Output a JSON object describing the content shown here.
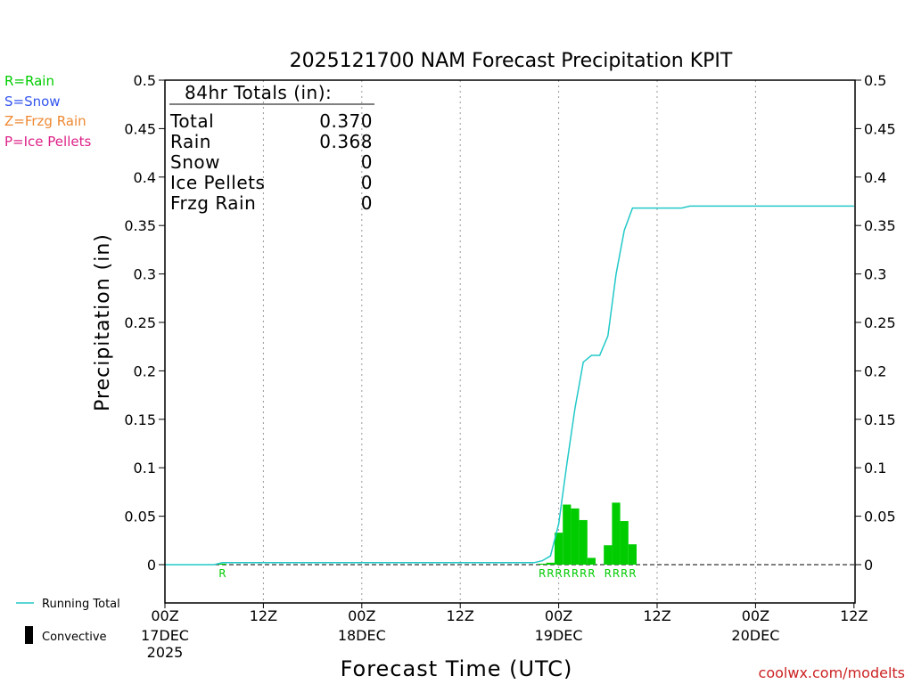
{
  "chart_data": {
    "type": "bar+line",
    "title": "2025121700 NAM Forecast Precipitation KPIT",
    "xlabel": "Forecast Time (UTC)",
    "ylabel": "Precipitation (in)",
    "ylim": [
      -0.04,
      0.5
    ],
    "y_ticks": [
      "0",
      "0.05",
      "0.1",
      "0.15",
      "0.2",
      "0.25",
      "0.3",
      "0.35",
      "0.4",
      "0.45",
      "0.5"
    ],
    "xlim_hours": [
      0,
      84
    ],
    "x_ticks": [
      {
        "hour": 0,
        "time": "00Z",
        "date": "17DEC",
        "year": "2025"
      },
      {
        "hour": 12,
        "time": "12Z",
        "date": "",
        "year": ""
      },
      {
        "hour": 24,
        "time": "00Z",
        "date": "18DEC",
        "year": ""
      },
      {
        "hour": 36,
        "time": "12Z",
        "date": "",
        "year": ""
      },
      {
        "hour": 48,
        "time": "00Z",
        "date": "19DEC",
        "year": ""
      },
      {
        "hour": 60,
        "time": "12Z",
        "date": "",
        "year": ""
      },
      {
        "hour": 72,
        "time": "00Z",
        "date": "20DEC",
        "year": ""
      },
      {
        "hour": 84,
        "time": "12Z",
        "date": "",
        "year": ""
      }
    ],
    "totals_box": {
      "heading": "84hr Totals (in):",
      "rows": [
        {
          "label": "Total",
          "value": "0.370"
        },
        {
          "label": "Rain",
          "value": "0.368"
        },
        {
          "label": "Snow",
          "value": "0"
        },
        {
          "label": "Ice Pellets",
          "value": "0"
        },
        {
          "label": "Frzg Rain",
          "value": "0"
        }
      ]
    },
    "precip_type_legend": [
      {
        "text": "R=Rain",
        "color": "#00cc00"
      },
      {
        "text": "S=Snow",
        "color": "#3355ee"
      },
      {
        "text": "Z=Frzg Rain",
        "color": "#ee8833"
      },
      {
        "text": "P=Ice Pellets",
        "color": "#dd2288"
      }
    ],
    "series_legend": {
      "running_total": "Running Total",
      "convective": "Convective"
    },
    "bars": {
      "name": "Hourly precipitation",
      "color": "#00cc00",
      "hour_width": 1,
      "data": [
        {
          "hour": 7,
          "value": 0.001
        },
        {
          "hour": 46,
          "value": 0.001
        },
        {
          "hour": 47,
          "value": 0.002
        },
        {
          "hour": 48,
          "value": 0.033
        },
        {
          "hour": 49,
          "value": 0.062
        },
        {
          "hour": 50,
          "value": 0.058
        },
        {
          "hour": 51,
          "value": 0.046
        },
        {
          "hour": 52,
          "value": 0.007
        },
        {
          "hour": 54,
          "value": 0.02
        },
        {
          "hour": 55,
          "value": 0.064
        },
        {
          "hour": 56,
          "value": 0.045
        },
        {
          "hour": 57,
          "value": 0.021
        }
      ]
    },
    "running_total": {
      "name": "Running Total",
      "color": "#22c8c8",
      "hours": [
        0,
        6,
        7,
        45,
        46,
        47,
        48,
        49,
        50,
        51,
        52,
        53,
        54,
        55,
        56,
        57,
        58,
        59,
        60,
        61,
        62,
        63,
        64,
        84
      ],
      "values": [
        0,
        0,
        0.002,
        0.002,
        0.004,
        0.009,
        0.042,
        0.104,
        0.162,
        0.209,
        0.216,
        0.216,
        0.236,
        0.3,
        0.345,
        0.368,
        0.368,
        0.368,
        0.368,
        0.368,
        0.368,
        0.368,
        0.37,
        0.37
      ]
    },
    "ptype_labels": [
      {
        "hour": 7,
        "text": "R"
      },
      {
        "hour": 46,
        "text": "R"
      },
      {
        "hour": 47,
        "text": "R"
      },
      {
        "hour": 48,
        "text": "R"
      },
      {
        "hour": 49,
        "text": "R"
      },
      {
        "hour": 50,
        "text": "R"
      },
      {
        "hour": 51,
        "text": "R"
      },
      {
        "hour": 52,
        "text": "R"
      },
      {
        "hour": 54,
        "text": "R"
      },
      {
        "hour": 55,
        "text": "R"
      },
      {
        "hour": 56,
        "text": "R"
      },
      {
        "hour": 57,
        "text": "R"
      }
    ],
    "credit": "coolwx.com/modelts"
  }
}
